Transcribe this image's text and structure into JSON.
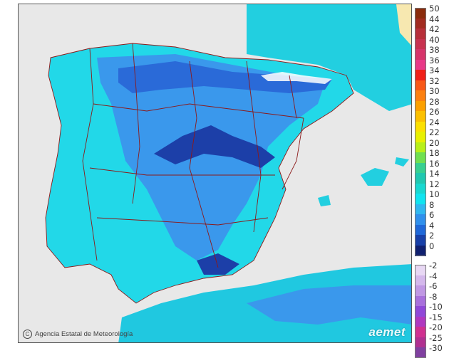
{
  "map": {
    "credit_text": "Agencia Estatal de Meteorología",
    "logo_text": "aemet",
    "sea_color": "#e8e8e8",
    "land_base_color": "#22d8e8",
    "border_color": "#8b1a1a"
  },
  "legend": {
    "positive": [
      {
        "label": "50",
        "color": "#8b2c0c"
      },
      {
        "label": "44",
        "color": "#a22c20"
      },
      {
        "label": "42",
        "color": "#b8303a"
      },
      {
        "label": "40",
        "color": "#c83250"
      },
      {
        "label": "38",
        "color": "#d6346a"
      },
      {
        "label": "36",
        "color": "#e83888"
      },
      {
        "label": "34",
        "color": "#f02018"
      },
      {
        "label": "32",
        "color": "#f85818"
      },
      {
        "label": "30",
        "color": "#fc8010"
      },
      {
        "label": "28",
        "color": "#fca000"
      },
      {
        "label": "26",
        "color": "#fcc000"
      },
      {
        "label": "24",
        "color": "#fce000"
      },
      {
        "label": "22",
        "color": "#e8f000"
      },
      {
        "label": "20",
        "color": "#b8f018"
      },
      {
        "label": "18",
        "color": "#70e050"
      },
      {
        "label": "16",
        "color": "#38d090"
      },
      {
        "label": "14",
        "color": "#20c8b0"
      },
      {
        "label": "12",
        "color": "#18d8d0"
      },
      {
        "label": "10",
        "color": "#10e4f0"
      },
      {
        "label": "8",
        "color": "#30b8f0"
      },
      {
        "label": "6",
        "color": "#3090ec"
      },
      {
        "label": "4",
        "color": "#2068d8"
      },
      {
        "label": "2",
        "color": "#1840a8"
      },
      {
        "label": "0",
        "color": "#102070"
      }
    ],
    "negative": [
      {
        "label": "-2",
        "color": "#e8d8f4"
      },
      {
        "label": "-4",
        "color": "#d4b8ec"
      },
      {
        "label": "-6",
        "color": "#c098e4"
      },
      {
        "label": "-8",
        "color": "#a870dc"
      },
      {
        "label": "-10",
        "color": "#9048d8"
      },
      {
        "label": "-15",
        "color": "#b038c0"
      },
      {
        "label": "-20",
        "color": "#d03090"
      },
      {
        "label": "-25",
        "color": "#b03090"
      },
      {
        "label": "-30",
        "color": "#8040a0"
      }
    ]
  }
}
